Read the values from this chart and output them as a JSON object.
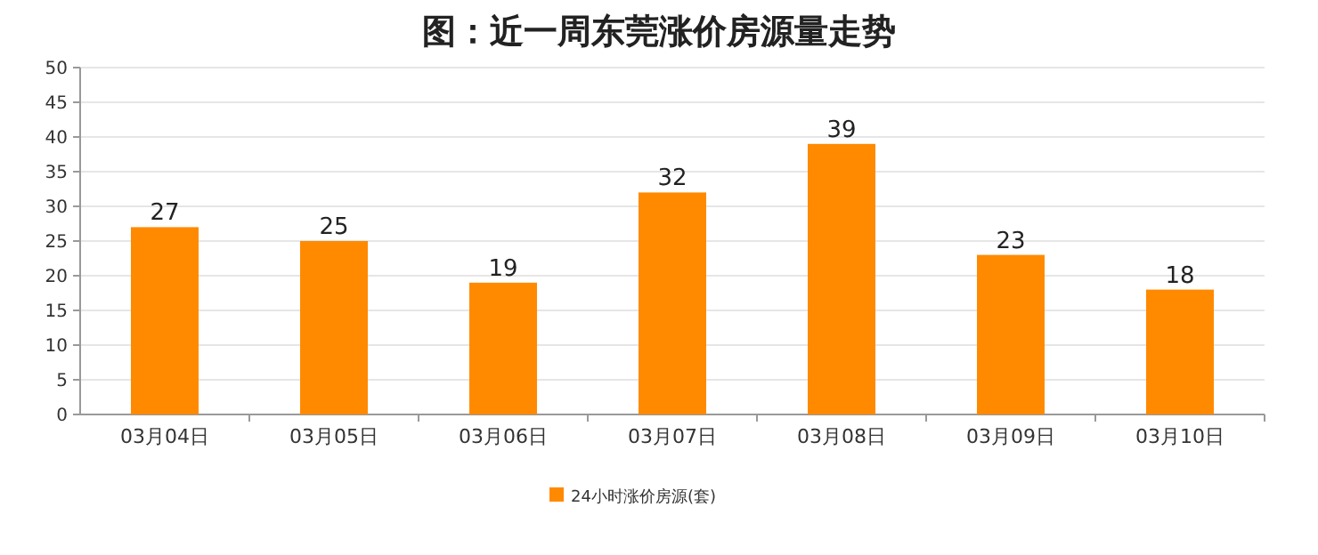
{
  "chart_data": {
    "type": "bar",
    "title": "图：近一周东莞涨价房源量走势",
    "categories": [
      "03月04日",
      "03月05日",
      "03月06日",
      "03月07日",
      "03月08日",
      "03月09日",
      "03月10日"
    ],
    "series": [
      {
        "name": "24小时涨价房源(套)",
        "color": "#ff8a00",
        "values": [
          27,
          25,
          19,
          32,
          39,
          23,
          18
        ]
      }
    ],
    "ylim": [
      0,
      50
    ],
    "yticks": [
      0,
      5,
      10,
      15,
      20,
      25,
      30,
      35,
      40,
      45,
      50
    ],
    "grid": "y",
    "legend": "bottom",
    "data_labels": true
  }
}
